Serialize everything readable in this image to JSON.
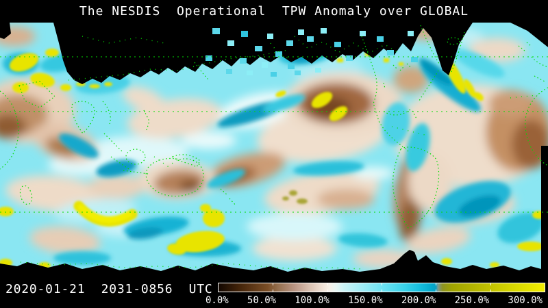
{
  "header": {
    "title": "The NESDIS  Operational  TPW Anomaly over GLOBAL"
  },
  "footer": {
    "date": "2020-01-21",
    "time_range": "2031-0856",
    "timezone": "UTC",
    "timestamp": "2020-01-21  2031-0856  UTC"
  },
  "colorbar": {
    "unit": "%",
    "min": 0,
    "max": 300,
    "labels": [
      "0.0%",
      "50.0%",
      "100.0%",
      "150.0%",
      "200.0%",
      "250.0%",
      "300.0%"
    ],
    "tick_values": [
      50,
      100,
      150,
      200,
      250
    ],
    "stops": [
      {
        "pct": 0,
        "color": "#120700"
      },
      {
        "pct": 6.7,
        "color": "#45250a"
      },
      {
        "pct": 15,
        "color": "#7a4e26"
      },
      {
        "pct": 18.3,
        "color": "#95704f"
      },
      {
        "pct": 23.3,
        "color": "#b99584"
      },
      {
        "pct": 28.3,
        "color": "#dcc4b4"
      },
      {
        "pct": 31.7,
        "color": "#efe0d4"
      },
      {
        "pct": 34,
        "color": "#f7f1e9"
      },
      {
        "pct": 36,
        "color": "#e9f7f4"
      },
      {
        "pct": 38.3,
        "color": "#ccf3f6"
      },
      {
        "pct": 43.3,
        "color": "#a5edf6"
      },
      {
        "pct": 50,
        "color": "#6fe3f3"
      },
      {
        "pct": 56.7,
        "color": "#3cd3ea"
      },
      {
        "pct": 61.7,
        "color": "#16bede"
      },
      {
        "pct": 65.7,
        "color": "#02a7cb"
      },
      {
        "pct": 66.7,
        "color": "#0d9fc0"
      },
      {
        "pct": 67.3,
        "color": "#7f9a92"
      },
      {
        "pct": 68.7,
        "color": "#8e9422"
      },
      {
        "pct": 71.7,
        "color": "#a0a400"
      },
      {
        "pct": 80,
        "color": "#b9b900"
      },
      {
        "pct": 90,
        "color": "#d6d600"
      },
      {
        "pct": 100,
        "color": "#f2ee00"
      }
    ]
  },
  "palette": {
    "bg_black": "#000000",
    "text_white": "#ffffff",
    "coast_green": "#00dd00",
    "nodata_black": "#000000",
    "anomaly_yellow": "#e8e400",
    "ocean_cyan": "#8ae6f2",
    "deep_teal": "#0a9cc0",
    "dry_brown": "#8f5c32",
    "neutral_cream": "#eedbc8"
  }
}
